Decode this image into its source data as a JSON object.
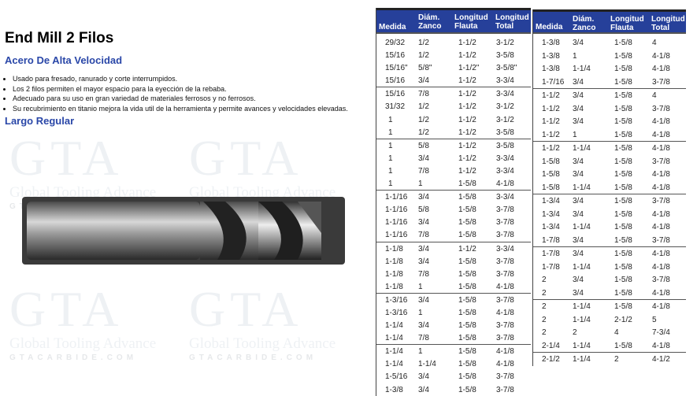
{
  "watermark": {
    "logo": "GTA",
    "name": "Global Tooling Advance",
    "site": "GTACARBIDE.COM"
  },
  "title": "End Mill 2 Filos",
  "subtitle": "Acero De Alta Velocidad",
  "bullets": [
    "Usado para fresado, ranurado y corte interrumpidos.",
    "Los 2 filos permiten el mayor espacio para la eyección de la rebaba.",
    "Adecuado para su uso en gran variedad de materiales ferrosos y no ferrosos.",
    "Su recubrimiento en titanio mejora la vida util de la herramienta y permite avances y velocidades elevadas."
  ],
  "section": "Largo Regular",
  "headers": {
    "medida": "Medida",
    "diam1": "Diám.",
    "diam2": "Zanco",
    "flauta1": "Longitud",
    "flauta2": "Flauta",
    "total1": "Longitud",
    "total2": "Total"
  },
  "colors": {
    "header_bg": "#26409a",
    "accent": "#2a47a8"
  },
  "table1": [
    [
      "29/32",
      "1/2",
      "1-1/2",
      "3-1/2"
    ],
    [
      "15/16",
      "1/2",
      "1-1/2",
      "3-5/8"
    ],
    [
      "15/16\"",
      "5/8\"",
      "1-1/2\"",
      "3-5/8\""
    ],
    [
      "15/16",
      "3/4",
      "1-1/2",
      "3-3/4"
    ],
    [
      "15/16",
      "7/8",
      "1-1/2",
      "3-3/4"
    ],
    [
      "31/32",
      "1/2",
      "1-1/2",
      "3-1/2"
    ],
    [
      "1",
      "1/2",
      "1-1/2",
      "3-1/2"
    ],
    [
      "1",
      "1/2",
      "1-1/2",
      "3-5/8"
    ],
    [
      "1",
      "5/8",
      "1-1/2",
      "3-5/8"
    ],
    [
      "1",
      "3/4",
      "1-1/2",
      "3-3/4"
    ],
    [
      "1",
      "7/8",
      "1-1/2",
      "3-3/4"
    ],
    [
      "1",
      "1",
      "1-5/8",
      "4-1/8"
    ],
    [
      "1-1/16",
      "3/4",
      "1-5/8",
      "3-3/4"
    ],
    [
      "1-1/16",
      "5/8",
      "1-5/8",
      "3-7/8"
    ],
    [
      "1-1/16",
      "3/4",
      "1-5/8",
      "3-7/8"
    ],
    [
      "1-1/16",
      "7/8",
      "1-5/8",
      "3-7/8"
    ],
    [
      "1-1/8",
      "3/4",
      "1-1/2",
      "3-3/4"
    ],
    [
      "1-1/8",
      "3/4",
      "1-5/8",
      "3-7/8"
    ],
    [
      "1-1/8",
      "7/8",
      "1-5/8",
      "3-7/8"
    ],
    [
      "1-1/8",
      "1",
      "1-5/8",
      "4-1/8"
    ],
    [
      "1-3/16",
      "3/4",
      "1-5/8",
      "3-7/8"
    ],
    [
      "1-3/16",
      "1",
      "1-5/8",
      "4-1/8"
    ],
    [
      "1-1/4",
      "3/4",
      "1-5/8",
      "3-7/8"
    ],
    [
      "1-1/4",
      "7/8",
      "1-5/8",
      "3-7/8"
    ],
    [
      "1-1/4",
      "1",
      "1-5/8",
      "4-1/8"
    ],
    [
      "1-1/4",
      "1-1/4",
      "1-5/8",
      "4-1/8"
    ],
    [
      "1-5/16",
      "3/4",
      "1-5/8",
      "3-7/8"
    ],
    [
      "1-3/8",
      "3/4",
      "1-5/8",
      "3-7/8"
    ]
  ],
  "table2": [
    [
      "1-3/8",
      "3/4",
      "1-5/8",
      "4"
    ],
    [
      "1-3/8",
      "1",
      "1-5/8",
      "4-1/8"
    ],
    [
      "1-3/8",
      "1-1/4",
      "1-5/8",
      "4-1/8"
    ],
    [
      "1-7/16",
      "3/4",
      "1-5/8",
      "3-7/8"
    ],
    [
      "1-1/2",
      "3/4",
      "1-5/8",
      "4"
    ],
    [
      "1-1/2",
      "3/4",
      "1-5/8",
      "3-7/8"
    ],
    [
      "1-1/2",
      "3/4",
      "1-5/8",
      "4-1/8"
    ],
    [
      "1-1/2",
      "1",
      "1-5/8",
      "4-1/8"
    ],
    [
      "1-1/2",
      "1-1/4",
      "1-5/8",
      "4-1/8"
    ],
    [
      "1-5/8",
      "3/4",
      "1-5/8",
      "3-7/8"
    ],
    [
      "1-5/8",
      "3/4",
      "1-5/8",
      "4-1/8"
    ],
    [
      "1-5/8",
      "1-1/4",
      "1-5/8",
      "4-1/8"
    ],
    [
      "1-3/4",
      "3/4",
      "1-5/8",
      "3-7/8"
    ],
    [
      "1-3/4",
      "3/4",
      "1-5/8",
      "4-1/8"
    ],
    [
      "1-3/4",
      "1-1/4",
      "1-5/8",
      "4-1/8"
    ],
    [
      "1-7/8",
      "3/4",
      "1-5/8",
      "3-7/8"
    ],
    [
      "1-7/8",
      "3/4",
      "1-5/8",
      "4-1/8"
    ],
    [
      "1-7/8",
      "1-1/4",
      "1-5/8",
      "4-1/8"
    ],
    [
      "2",
      "3/4",
      "1-5/8",
      "3-7/8"
    ],
    [
      "2",
      "3/4",
      "1-5/8",
      "4-1/8"
    ],
    [
      "2",
      "1-1/4",
      "1-5/8",
      "4-1/8"
    ],
    [
      "2",
      "1-1/4",
      "2-1/2",
      "5"
    ],
    [
      "2",
      "2",
      "4",
      "7-3/4"
    ],
    [
      "2-1/4",
      "1-1/4",
      "1-5/8",
      "4-1/8"
    ],
    [
      "2-1/2",
      "1-1/4",
      "2",
      "4-1/2"
    ]
  ]
}
